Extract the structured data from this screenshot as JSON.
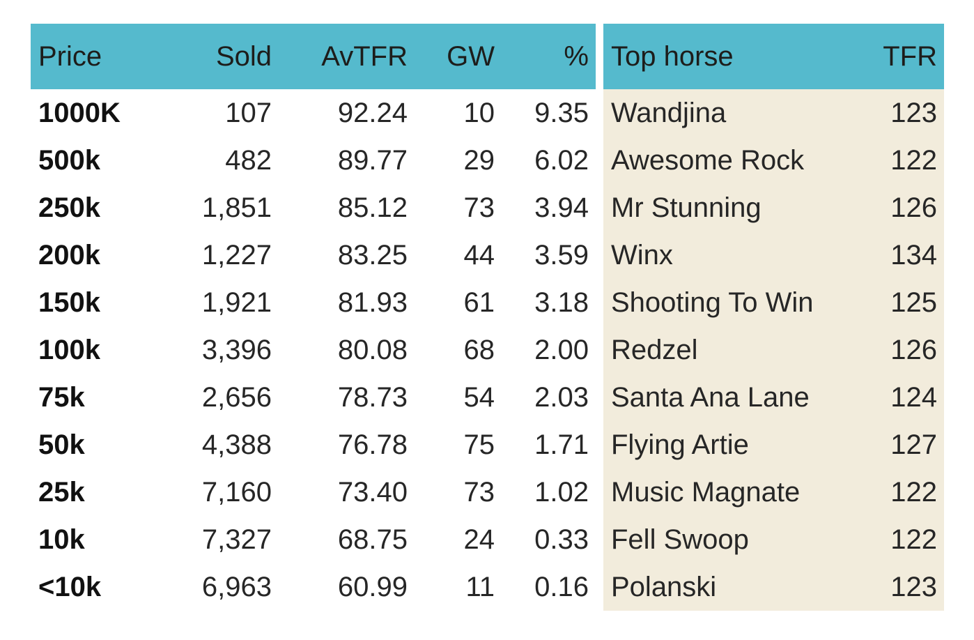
{
  "chart_data": {
    "type": "table",
    "header": {
      "price": "Price",
      "sold": "Sold",
      "avtfr": "AvTFR",
      "gw": "GW",
      "pct": "%",
      "horse": "Top horse",
      "tfr": "TFR"
    },
    "columns": [
      "Price",
      "Sold",
      "AvTFR",
      "GW",
      "%",
      "Top horse",
      "TFR"
    ],
    "rows": [
      {
        "price": "1000K",
        "sold": "107",
        "avtfr": "92.24",
        "gw": "10",
        "pct": "9.35",
        "horse": "Wandjina",
        "tfr": "123"
      },
      {
        "price": "500k",
        "sold": "482",
        "avtfr": "89.77",
        "gw": "29",
        "pct": "6.02",
        "horse": "Awesome Rock",
        "tfr": "122"
      },
      {
        "price": "250k",
        "sold": "1,851",
        "avtfr": "85.12",
        "gw": "73",
        "pct": "3.94",
        "horse": "Mr Stunning",
        "tfr": "126"
      },
      {
        "price": "200k",
        "sold": "1,227",
        "avtfr": "83.25",
        "gw": "44",
        "pct": "3.59",
        "horse": "Winx",
        "tfr": "134"
      },
      {
        "price": "150k",
        "sold": "1,921",
        "avtfr": "81.93",
        "gw": "61",
        "pct": "3.18",
        "horse": "Shooting To Win",
        "tfr": "125"
      },
      {
        "price": "100k",
        "sold": "3,396",
        "avtfr": "80.08",
        "gw": "68",
        "pct": "2.00",
        "horse": "Redzel",
        "tfr": "126"
      },
      {
        "price": "75k",
        "sold": "2,656",
        "avtfr": "78.73",
        "gw": "54",
        "pct": "2.03",
        "horse": "Santa Ana Lane",
        "tfr": "124"
      },
      {
        "price": "50k",
        "sold": "4,388",
        "avtfr": "76.78",
        "gw": "75",
        "pct": "1.71",
        "horse": "Flying Artie",
        "tfr": "127"
      },
      {
        "price": "25k",
        "sold": "7,160",
        "avtfr": "73.40",
        "gw": "73",
        "pct": "1.02",
        "horse": "Music Magnate",
        "tfr": "122"
      },
      {
        "price": "10k",
        "sold": "7,327",
        "avtfr": "68.75",
        "gw": "24",
        "pct": "0.33",
        "horse": "Fell Swoop",
        "tfr": "122"
      },
      {
        "price": "<10k",
        "sold": "6,963",
        "avtfr": "60.99",
        "gw": "11",
        "pct": "0.16",
        "horse": "Polanski",
        "tfr": "123"
      }
    ],
    "layout": {
      "legend": "none",
      "grid": "off",
      "sections": [
        "price-stats",
        "top-horse"
      ]
    }
  },
  "colors": {
    "header_bg": "#55bacd",
    "top_horse_bg": "#f2ecdc",
    "text": "#1d1d1b",
    "page_bg": "#ffffff"
  }
}
